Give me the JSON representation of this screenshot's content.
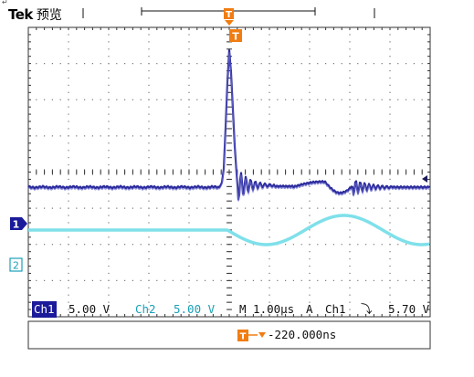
{
  "header": {
    "brand": "Tek",
    "mode": "预览",
    "return_mark": "↵"
  },
  "markers": {
    "trigger": "T",
    "ch1": "1",
    "ch2": "2"
  },
  "status": {
    "ch1_label": "Ch1",
    "ch1_scale": "5.00 V",
    "ch2_label": "Ch2",
    "ch2_scale": "5.00 V",
    "timebase": "M 1.00µs",
    "trigger_mode": "A",
    "trigger_source": "Ch1",
    "trigger_slope": "⤵",
    "trigger_level": "5.70 V",
    "trigger_delay": "-220.000ns"
  },
  "colors": {
    "ch1": "#2b2b9c",
    "ch2": "#7fe0ea",
    "grid": "#777777",
    "trigger": "#f07d12"
  }
}
